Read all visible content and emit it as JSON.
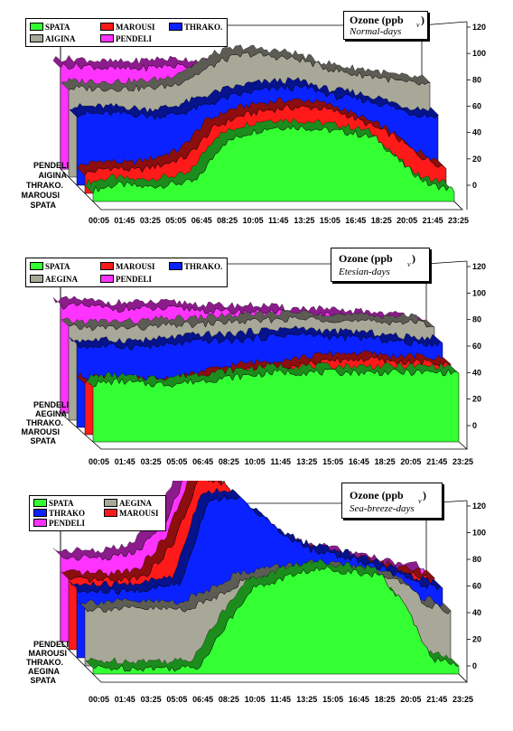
{
  "x_ticks": [
    "00:05",
    "01:45",
    "03:25",
    "05:05",
    "06:45",
    "08:25",
    "10:05",
    "11:45",
    "13:25",
    "15:05",
    "16:45",
    "18:25",
    "20:05",
    "21:45",
    "23:25"
  ],
  "y_ticks": [
    "0",
    "20",
    "40",
    "60",
    "80",
    "100",
    "120"
  ],
  "colors": {
    "SPATA": "#33ff33",
    "MAROUSI": "#ff1a1a",
    "THRAKO": "#0a22ff",
    "AEGINA": "#a8a898",
    "PENDELI": "#ff33ff"
  },
  "chart_data": [
    {
      "type": "area",
      "title_main": "Ozone (ppb",
      "title_unit": "v",
      "title_close": ")",
      "subtitle": "Normal-days",
      "legend": [
        "SPATA",
        "MAROUSI",
        "THRAKO.",
        "AIGINA",
        "PENDELI"
      ],
      "series_labels": [
        "PENDELI",
        "AIGINA",
        "THRAKO.",
        "MAROUSI",
        "SPATA"
      ],
      "x": [
        "00:05",
        "01:45",
        "03:25",
        "05:05",
        "06:45",
        "08:25",
        "10:05",
        "11:45",
        "13:25",
        "15:05",
        "16:45",
        "18:25",
        "20:05",
        "21:45",
        "23:25"
      ],
      "ylim": [
        0,
        120
      ],
      "series": [
        {
          "name": "SPATA",
          "values": [
            8,
            12,
            10,
            12,
            14,
            40,
            48,
            52,
            52,
            50,
            48,
            44,
            26,
            12,
            8
          ]
        },
        {
          "name": "MAROUSI",
          "values": [
            14,
            18,
            16,
            20,
            26,
            46,
            54,
            58,
            60,
            60,
            56,
            48,
            40,
            26,
            18
          ]
        },
        {
          "name": "THRAKO.",
          "values": [
            50,
            50,
            50,
            48,
            50,
            56,
            62,
            66,
            68,
            68,
            62,
            60,
            56,
            50,
            48
          ]
        },
        {
          "name": "AIGINA",
          "values": [
            62,
            62,
            62,
            62,
            64,
            72,
            82,
            86,
            84,
            82,
            76,
            72,
            70,
            66,
            64
          ]
        },
        {
          "name": "PENDELI",
          "values": [
            72,
            72,
            70,
            70,
            72,
            72,
            70,
            68,
            68,
            64,
            60,
            58,
            52,
            50,
            48
          ]
        }
      ]
    },
    {
      "type": "area",
      "title_main": "Ozone (ppb",
      "title_unit": "v",
      "title_close": ")",
      "subtitle": "Etesian-days",
      "legend": [
        "SPATA",
        "MAROUSI",
        "THRAKO.",
        "AEGINA",
        "PENDELI"
      ],
      "series_labels": [
        "PENDELI",
        "AEGINA",
        "THRAKO.",
        "MAROUSI",
        "SPATA"
      ],
      "x": [
        "00:05",
        "01:45",
        "03:25",
        "05:05",
        "06:45",
        "08:25",
        "10:05",
        "11:45",
        "13:25",
        "15:05",
        "16:45",
        "18:25",
        "20:05",
        "21:45",
        "23:25"
      ],
      "ylim": [
        0,
        120
      ],
      "series": [
        {
          "name": "SPATA",
          "values": [
            40,
            42,
            40,
            40,
            42,
            44,
            46,
            48,
            48,
            48,
            48,
            48,
            48,
            48,
            48
          ]
        },
        {
          "name": "MAROUSI",
          "values": [
            36,
            36,
            34,
            34,
            36,
            40,
            44,
            46,
            48,
            50,
            52,
            52,
            50,
            50,
            48
          ]
        },
        {
          "name": "THRAKO.",
          "values": [
            56,
            56,
            56,
            56,
            58,
            60,
            60,
            62,
            64,
            64,
            62,
            62,
            60,
            58,
            58
          ]
        },
        {
          "name": "AEGINA",
          "values": [
            64,
            64,
            64,
            64,
            66,
            66,
            68,
            68,
            70,
            70,
            70,
            68,
            68,
            68,
            66
          ]
        },
        {
          "name": "PENDELI",
          "values": [
            74,
            74,
            72,
            72,
            72,
            72,
            70,
            70,
            70,
            68,
            68,
            66,
            66,
            64,
            64
          ]
        }
      ]
    },
    {
      "type": "area",
      "title_main": "Ozone (ppb",
      "title_unit": "v",
      "title_close": ")",
      "subtitle": "Sea-breeze-days",
      "legend": [
        "SPATA",
        "AEGINA",
        "THRAKO",
        "MAROUSI",
        "PENDELI"
      ],
      "series_labels": [
        "PENDELI",
        "MAROUSI",
        "THRAKO.",
        "AEGINA",
        "SPATA"
      ],
      "x": [
        "00:05",
        "01:45",
        "03:25",
        "05:05",
        "06:45",
        "08:25",
        "10:05",
        "11:45",
        "13:25",
        "15:05",
        "16:45",
        "18:25",
        "20:05",
        "21:45",
        "23:25"
      ],
      "ylim": [
        0,
        120
      ],
      "series": [
        {
          "name": "SPATA",
          "values": [
            4,
            4,
            4,
            4,
            4,
            30,
            56,
            62,
            68,
            70,
            68,
            66,
            44,
            10,
            6
          ]
        },
        {
          "name": "AEGINA",
          "values": [
            38,
            38,
            38,
            38,
            38,
            46,
            56,
            60,
            62,
            64,
            62,
            60,
            58,
            42,
            36
          ]
        },
        {
          "name": "THRAKO.",
          "values": [
            44,
            44,
            44,
            46,
            50,
            104,
            108,
            96,
            80,
            72,
            68,
            64,
            58,
            50,
            46
          ]
        },
        {
          "name": "MAROUSI",
          "values": [
            46,
            46,
            46,
            50,
            70,
            114,
            110,
            90,
            74,
            66,
            62,
            58,
            54,
            50,
            46
          ]
        },
        {
          "name": "PENDELI",
          "values": [
            56,
            56,
            56,
            60,
            80,
            118,
            108,
            88,
            72,
            64,
            60,
            56,
            52,
            48,
            46
          ]
        }
      ]
    }
  ]
}
